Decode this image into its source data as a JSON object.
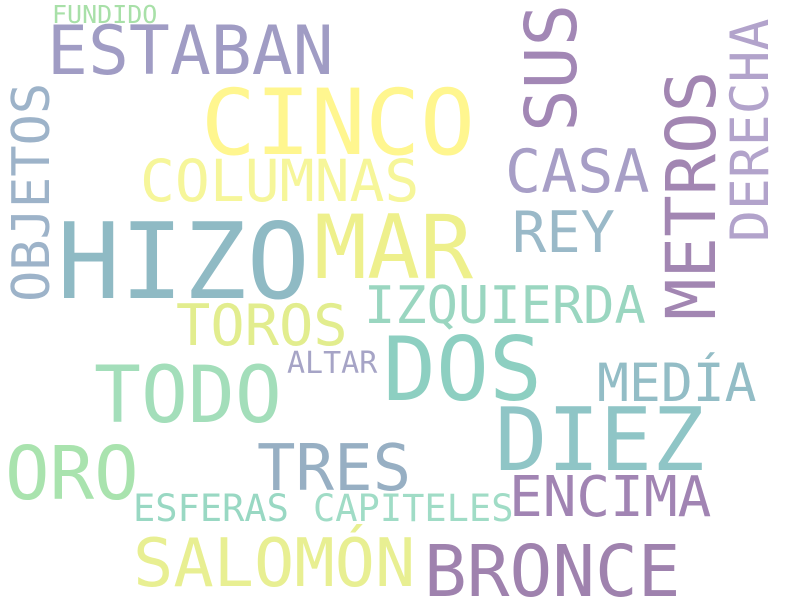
{
  "words": [
    {
      "text": "FUNDIDO",
      "color": "#a8e0a8"
    },
    {
      "text": "ESTABAN",
      "color": "#a09cc4"
    },
    {
      "text": "CINCO",
      "color": "#fff68f"
    },
    {
      "text": "SUS",
      "color": "#a287b5"
    },
    {
      "text": "DERECHA",
      "color": "#b2a3cb"
    },
    {
      "text": "OBJETOS",
      "color": "#9db3c9"
    },
    {
      "text": "COLUMNAS",
      "color": "#f6f69a"
    },
    {
      "text": "CASA",
      "color": "#a79ec6"
    },
    {
      "text": "METROS",
      "color": "#a286b2"
    },
    {
      "text": "HIZO",
      "color": "#8fbac4"
    },
    {
      "text": "MAR",
      "color": "#eef08c"
    },
    {
      "text": "REY",
      "color": "#9ab9c8"
    },
    {
      "text": "TOROS",
      "color": "#e2ed8e"
    },
    {
      "text": "IZQUIERDA",
      "color": "#9ad6c0"
    },
    {
      "text": "ALTAR",
      "color": "#a6a4c6"
    },
    {
      "text": "DOS",
      "color": "#8dcfc1"
    },
    {
      "text": "TODO",
      "color": "#a3deba"
    },
    {
      "text": "MEDÍA",
      "color": "#93bdc6"
    },
    {
      "text": "DIEZ",
      "color": "#8fc5c6"
    },
    {
      "text": "ORO",
      "color": "#a9e3ae"
    },
    {
      "text": "TRES",
      "color": "#97afc3"
    },
    {
      "text": "ENCIMA",
      "color": "#a184b3"
    },
    {
      "text": "ESFERAS",
      "color": "#99d8c3"
    },
    {
      "text": "CAPITELES",
      "color": "#a0dcc6"
    },
    {
      "text": "SALOMÓN",
      "color": "#e8ef92"
    },
    {
      "text": "BRONCE",
      "color": "#9f82ae"
    }
  ]
}
